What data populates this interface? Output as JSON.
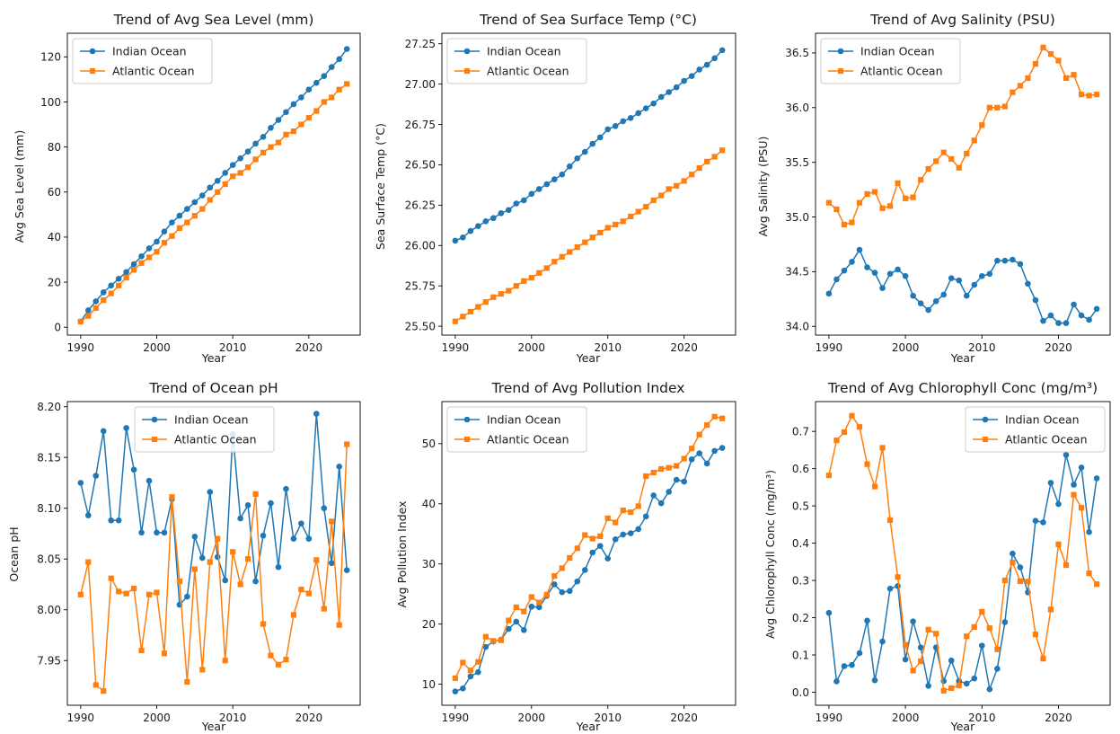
{
  "figure": {
    "background": "#ffffff"
  },
  "colors": {
    "indian": "#1f77b4",
    "atlantic": "#ff7f0e"
  },
  "chart_data": [
    {
      "type": "line",
      "title": "Trend of Avg Sea Level (mm)",
      "xlabel": "Year",
      "ylabel": "Avg Sea Level (mm)",
      "xlim": [
        1988.25,
        2026.75
      ],
      "ylim": [
        -3.5,
        130.5
      ],
      "xticks": [
        1990,
        2000,
        2010,
        2020
      ],
      "yticks": [
        0,
        20,
        40,
        60,
        80,
        100,
        120
      ],
      "ytick_labels": [
        "0",
        "20",
        "40",
        "60",
        "80",
        "100",
        "120"
      ],
      "legend": "upper-left",
      "grid": false,
      "x": [
        1990,
        1991,
        1992,
        1993,
        1994,
        1995,
        1996,
        1997,
        1998,
        1999,
        2000,
        2001,
        2002,
        2003,
        2004,
        2005,
        2006,
        2007,
        2008,
        2009,
        2010,
        2011,
        2012,
        2013,
        2014,
        2015,
        2016,
        2017,
        2018,
        2019,
        2020,
        2021,
        2022,
        2023,
        2024,
        2025
      ],
      "series": [
        {
          "name": "Indian Ocean",
          "marker": "circle",
          "color": "#1f77b4",
          "values": [
            2.5,
            7.5,
            11.5,
            15.5,
            18.5,
            21.5,
            24.5,
            28,
            31.5,
            35,
            38,
            42.5,
            46.5,
            49.5,
            52.5,
            55.5,
            58.5,
            62,
            65,
            68.5,
            72,
            75,
            78,
            81.5,
            84.5,
            88.5,
            92,
            95.5,
            99,
            102,
            105.5,
            108.5,
            111.5,
            115.5,
            119,
            123.5
          ]
        },
        {
          "name": "Atlantic Ocean",
          "marker": "square",
          "color": "#ff7f0e",
          "values": [
            2.5,
            5,
            8.5,
            12,
            15,
            18.5,
            22,
            25.5,
            28.5,
            31,
            33.5,
            37.5,
            40.5,
            44,
            46.5,
            49.5,
            52.5,
            56.5,
            60,
            63.5,
            67,
            68.5,
            71,
            74.5,
            77.5,
            80,
            82,
            85.5,
            87,
            90,
            93,
            96,
            100,
            102,
            105.5,
            108
          ]
        }
      ]
    },
    {
      "type": "line",
      "title": "Trend of Sea Surface Temp (°C)",
      "xlabel": "Year",
      "ylabel": "Sea Surface Temp (°C)",
      "xlim": [
        1988.25,
        2026.75
      ],
      "ylim": [
        25.445,
        27.315
      ],
      "xticks": [
        1990,
        2000,
        2010,
        2020
      ],
      "yticks": [
        25.5,
        25.75,
        26.0,
        26.25,
        26.5,
        26.75,
        27.0,
        27.25
      ],
      "ytick_labels": [
        "25.50",
        "25.75",
        "26.00",
        "26.25",
        "26.50",
        "26.75",
        "27.00",
        "27.25"
      ],
      "legend": "upper-left",
      "grid": false,
      "x": [
        1990,
        1991,
        1992,
        1993,
        1994,
        1995,
        1996,
        1997,
        1998,
        1999,
        2000,
        2001,
        2002,
        2003,
        2004,
        2005,
        2006,
        2007,
        2008,
        2009,
        2010,
        2011,
        2012,
        2013,
        2014,
        2015,
        2016,
        2017,
        2018,
        2019,
        2020,
        2021,
        2022,
        2023,
        2024,
        2025
      ],
      "series": [
        {
          "name": "Indian Ocean",
          "marker": "circle",
          "color": "#1f77b4",
          "values": [
            26.03,
            26.05,
            26.09,
            26.12,
            26.15,
            26.17,
            26.2,
            26.22,
            26.26,
            26.28,
            26.32,
            26.35,
            26.38,
            26.41,
            26.44,
            26.49,
            26.54,
            26.58,
            26.63,
            26.67,
            26.72,
            26.74,
            26.77,
            26.79,
            26.82,
            26.85,
            26.88,
            26.92,
            26.95,
            26.98,
            27.02,
            27.05,
            27.09,
            27.12,
            27.16,
            27.21
          ]
        },
        {
          "name": "Atlantic Ocean",
          "marker": "square",
          "color": "#ff7f0e",
          "values": [
            25.53,
            25.56,
            25.59,
            25.62,
            25.65,
            25.68,
            25.7,
            25.72,
            25.75,
            25.78,
            25.8,
            25.83,
            25.86,
            25.9,
            25.93,
            25.96,
            25.99,
            26.02,
            26.05,
            26.08,
            26.11,
            26.13,
            26.15,
            26.18,
            26.21,
            26.24,
            26.28,
            26.31,
            26.35,
            26.37,
            26.4,
            26.44,
            26.48,
            26.52,
            26.55,
            26.59
          ]
        }
      ]
    },
    {
      "type": "line",
      "title": "Trend of Avg Salinity (PSU)",
      "xlabel": "Year",
      "ylabel": "Avg Salinity (PSU)",
      "xlim": [
        1988.25,
        2026.75
      ],
      "ylim": [
        33.92,
        36.68
      ],
      "xticks": [
        1990,
        2000,
        2010,
        2020
      ],
      "yticks": [
        34.0,
        34.5,
        35.0,
        35.5,
        36.0,
        36.5
      ],
      "ytick_labels": [
        "34.0",
        "34.5",
        "35.0",
        "35.5",
        "36.0",
        "36.5"
      ],
      "legend": "upper-left",
      "grid": false,
      "x": [
        1990,
        1991,
        1992,
        1993,
        1994,
        1995,
        1996,
        1997,
        1998,
        1999,
        2000,
        2001,
        2002,
        2003,
        2004,
        2005,
        2006,
        2007,
        2008,
        2009,
        2010,
        2011,
        2012,
        2013,
        2014,
        2015,
        2016,
        2017,
        2018,
        2019,
        2020,
        2021,
        2022,
        2023,
        2024,
        2025
      ],
      "series": [
        {
          "name": "Indian Ocean",
          "marker": "circle",
          "color": "#1f77b4",
          "values": [
            34.3,
            34.43,
            34.51,
            34.59,
            34.7,
            34.54,
            34.49,
            34.35,
            34.48,
            34.52,
            34.46,
            34.28,
            34.21,
            34.15,
            34.23,
            34.29,
            34.44,
            34.42,
            34.28,
            34.38,
            34.46,
            34.48,
            34.6,
            34.6,
            34.61,
            34.57,
            34.39,
            34.24,
            34.05,
            34.1,
            34.03,
            34.03,
            34.2,
            34.1,
            34.06,
            34.16
          ]
        },
        {
          "name": "Atlantic Ocean",
          "marker": "square",
          "color": "#ff7f0e",
          "values": [
            35.13,
            35.07,
            34.93,
            34.95,
            35.13,
            35.21,
            35.23,
            35.08,
            35.1,
            35.31,
            35.17,
            35.18,
            35.34,
            35.44,
            35.51,
            35.59,
            35.53,
            35.45,
            35.58,
            35.7,
            35.84,
            36.0,
            36.0,
            36.01,
            36.14,
            36.2,
            36.27,
            36.4,
            36.55,
            36.49,
            36.43,
            36.27,
            36.3,
            36.12,
            36.11,
            36.12
          ]
        }
      ]
    },
    {
      "type": "line",
      "title": "Trend of Ocean pH",
      "xlabel": "Year",
      "ylabel": "Ocean pH",
      "xlim": [
        1988.25,
        2026.75
      ],
      "ylim": [
        7.906,
        8.205
      ],
      "xticks": [
        1990,
        2000,
        2010,
        2020
      ],
      "yticks": [
        7.95,
        8.0,
        8.05,
        8.1,
        8.15,
        8.2
      ],
      "ytick_labels": [
        "7.95",
        "8.00",
        "8.05",
        "8.10",
        "8.15",
        "8.20"
      ],
      "legend": "upper-center",
      "grid": false,
      "x": [
        1990,
        1991,
        1992,
        1993,
        1994,
        1995,
        1996,
        1997,
        1998,
        1999,
        2000,
        2001,
        2002,
        2003,
        2004,
        2005,
        2006,
        2007,
        2008,
        2009,
        2010,
        2011,
        2012,
        2013,
        2014,
        2015,
        2016,
        2017,
        2018,
        2019,
        2020,
        2021,
        2022,
        2023,
        2024,
        2025
      ],
      "series": [
        {
          "name": "Indian Ocean",
          "marker": "circle",
          "color": "#1f77b4",
          "values": [
            8.125,
            8.093,
            8.132,
            8.176,
            8.088,
            8.088,
            8.179,
            8.138,
            8.076,
            8.127,
            8.076,
            8.076,
            8.109,
            8.005,
            8.013,
            8.072,
            8.051,
            8.116,
            8.052,
            8.029,
            8.173,
            8.09,
            8.103,
            8.028,
            8.073,
            8.105,
            8.042,
            8.119,
            8.07,
            8.085,
            8.07,
            8.193,
            8.1,
            8.046,
            8.141,
            8.039
          ]
        },
        {
          "name": "Atlantic Ocean",
          "marker": "square",
          "color": "#ff7f0e",
          "values": [
            8.015,
            8.047,
            7.926,
            7.92,
            8.031,
            8.018,
            8.016,
            8.021,
            7.96,
            8.015,
            8.017,
            7.957,
            8.111,
            8.028,
            7.929,
            8.04,
            7.941,
            8.047,
            8.07,
            7.95,
            8.057,
            8.025,
            8.05,
            8.114,
            7.986,
            7.955,
            7.946,
            7.951,
            7.995,
            8.02,
            8.016,
            8.049,
            8.001,
            8.087,
            7.985,
            8.163
          ]
        }
      ]
    },
    {
      "type": "line",
      "title": "Trend of Avg Pollution Index",
      "xlabel": "Year",
      "ylabel": "Avg Pollution Index",
      "xlim": [
        1988.25,
        2026.75
      ],
      "ylim": [
        6.5,
        57.0
      ],
      "xticks": [
        1990,
        2000,
        2010,
        2020
      ],
      "yticks": [
        10,
        20,
        30,
        40,
        50
      ],
      "ytick_labels": [
        "10",
        "20",
        "30",
        "40",
        "50"
      ],
      "legend": "upper-left",
      "grid": false,
      "x": [
        1990,
        1991,
        1992,
        1993,
        1994,
        1995,
        1996,
        1997,
        1998,
        1999,
        2000,
        2001,
        2002,
        2003,
        2004,
        2005,
        2006,
        2007,
        2008,
        2009,
        2010,
        2011,
        2012,
        2013,
        2014,
        2015,
        2016,
        2017,
        2018,
        2019,
        2020,
        2021,
        2022,
        2023,
        2024,
        2025
      ],
      "series": [
        {
          "name": "Indian Ocean",
          "marker": "circle",
          "color": "#1f77b4",
          "values": [
            8.8,
            9.3,
            11.3,
            12,
            16.2,
            17.1,
            17.4,
            19.2,
            20.4,
            19,
            22.9,
            22.8,
            24.7,
            26.6,
            25.3,
            25.5,
            27.1,
            29,
            31.9,
            33,
            30.9,
            34.1,
            34.9,
            35.1,
            35.8,
            37.9,
            41.4,
            40.1,
            42,
            44,
            43.7,
            47.4,
            48.4,
            46.7,
            48.8,
            49.3
          ]
        },
        {
          "name": "Atlantic Ocean",
          "marker": "square",
          "color": "#ff7f0e",
          "values": [
            11,
            13.6,
            12.3,
            13.7,
            17.9,
            17.2,
            17.3,
            20.6,
            22.8,
            22.1,
            24.5,
            23.6,
            24.9,
            28,
            29.3,
            31,
            32.6,
            34.8,
            34.2,
            34.6,
            37.6,
            36.9,
            38.9,
            38.6,
            39.6,
            44.6,
            45.2,
            45.8,
            46,
            46.3,
            47.5,
            49.2,
            51.5,
            53.1,
            54.5,
            54.2
          ]
        }
      ]
    },
    {
      "type": "line",
      "title": "Trend of Avg Chlorophyll Conc (mg/m³)",
      "xlabel": "Year",
      "ylabel": "Avg Chlorophyll Conc (mg/m³)",
      "xlim": [
        1988.25,
        2026.75
      ],
      "ylim": [
        -0.035,
        0.78
      ],
      "xticks": [
        1990,
        2000,
        2010,
        2020
      ],
      "yticks": [
        0.0,
        0.1,
        0.2,
        0.3,
        0.4,
        0.5,
        0.6,
        0.7
      ],
      "ytick_labels": [
        "0.0",
        "0.1",
        "0.2",
        "0.3",
        "0.4",
        "0.5",
        "0.6",
        "0.7"
      ],
      "legend": "upper-right",
      "grid": false,
      "x": [
        1990,
        1991,
        1992,
        1993,
        1994,
        1995,
        1996,
        1997,
        1998,
        1999,
        2000,
        2001,
        2002,
        2003,
        2004,
        2005,
        2006,
        2007,
        2008,
        2009,
        2010,
        2011,
        2012,
        2013,
        2014,
        2015,
        2016,
        2017,
        2018,
        2019,
        2020,
        2021,
        2022,
        2023,
        2024,
        2025
      ],
      "series": [
        {
          "name": "Indian Ocean",
          "marker": "circle",
          "color": "#1f77b4",
          "values": [
            0.213,
            0.029,
            0.07,
            0.073,
            0.105,
            0.192,
            0.032,
            0.136,
            0.278,
            0.285,
            0.088,
            0.19,
            0.12,
            0.017,
            0.12,
            0.03,
            0.085,
            0.03,
            0.023,
            0.037,
            0.125,
            0.008,
            0.063,
            0.188,
            0.372,
            0.335,
            0.268,
            0.46,
            0.456,
            0.562,
            0.505,
            0.637,
            0.557,
            0.603,
            0.43,
            0.574
          ]
        },
        {
          "name": "Atlantic Ocean",
          "marker": "square",
          "color": "#ff7f0e",
          "values": [
            0.582,
            0.676,
            0.698,
            0.742,
            0.712,
            0.612,
            0.552,
            0.656,
            0.462,
            0.309,
            0.127,
            0.058,
            0.083,
            0.168,
            0.157,
            0.004,
            0.011,
            0.018,
            0.15,
            0.175,
            0.216,
            0.172,
            0.115,
            0.3,
            0.348,
            0.298,
            0.297,
            0.155,
            0.09,
            0.222,
            0.397,
            0.341,
            0.53,
            0.495,
            0.319,
            0.29
          ]
        }
      ]
    }
  ]
}
